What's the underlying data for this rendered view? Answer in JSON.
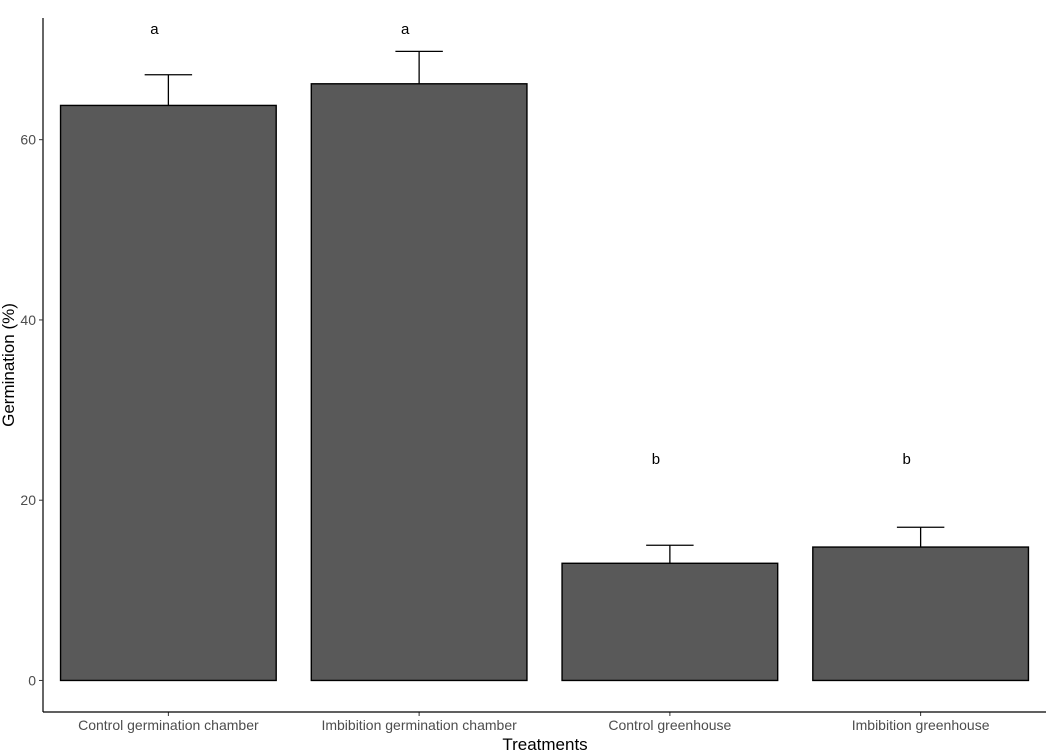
{
  "chart_data": {
    "type": "bar",
    "xlabel": "Treatments",
    "ylabel": "Germination (%)",
    "categories": [
      "Control germination chamber",
      "Imbibition germination chamber",
      "Control greenhouse",
      "Imbibition greenhouse"
    ],
    "values": [
      63.8,
      66.2,
      13.0,
      14.8
    ],
    "error_upper": [
      67.2,
      69.8,
      15.0,
      17.0
    ],
    "significance": [
      "a",
      "a",
      "b",
      "b"
    ],
    "yticks": [
      0,
      20,
      40,
      60
    ],
    "ylim": [
      -3.5,
      73.5
    ],
    "colors": {
      "bar": "#595959",
      "bar_edge": "#000000",
      "axis": "#000000",
      "tick_text": "#4d4d4d"
    },
    "grid": false,
    "legend": "none"
  }
}
